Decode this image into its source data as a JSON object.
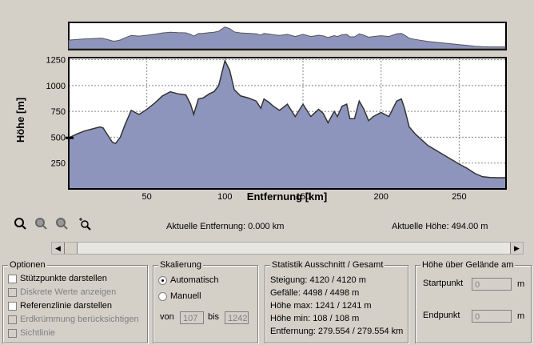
{
  "chart_data": {
    "type": "area",
    "y_label": "Höhe [m]",
    "x_label": "Entfernung [km]",
    "color": "#8e95bd",
    "x": [
      0,
      5,
      10,
      15,
      20,
      22,
      25,
      28,
      30,
      33,
      36,
      40,
      45,
      50,
      55,
      60,
      65,
      70,
      75,
      78,
      80,
      83,
      86,
      90,
      93,
      96,
      100,
      103,
      106,
      110,
      115,
      120,
      123,
      125,
      128,
      131,
      135,
      140,
      145,
      150,
      155,
      160,
      163,
      166,
      170,
      172,
      175,
      178,
      180,
      183,
      186,
      189,
      192,
      195,
      200,
      205,
      210,
      213,
      215,
      218,
      222,
      230,
      240,
      250,
      255,
      260,
      265,
      270,
      275,
      279.5
    ],
    "values": [
      494,
      530,
      560,
      580,
      600,
      590,
      520,
      450,
      440,
      500,
      620,
      760,
      720,
      770,
      830,
      900,
      940,
      920,
      910,
      820,
      720,
      870,
      880,
      920,
      940,
      1000,
      1241,
      1150,
      960,
      900,
      880,
      850,
      780,
      870,
      840,
      800,
      760,
      820,
      700,
      820,
      700,
      770,
      730,
      640,
      750,
      700,
      800,
      820,
      680,
      680,
      850,
      770,
      660,
      700,
      740,
      700,
      850,
      870,
      780,
      600,
      530,
      420,
      330,
      240,
      200,
      150,
      118,
      110,
      108,
      108
    ],
    "xlim": [
      0,
      280
    ],
    "ylim": [
      0,
      1270
    ],
    "xticks": [
      50,
      100,
      150,
      200,
      250
    ],
    "yticks": [
      250,
      500,
      750,
      1000,
      1250
    ],
    "grid": true
  },
  "status": {
    "distance": "Aktuelle Entfernung: 0.000 km",
    "height": "Aktuelle Höhe: 494.00 m"
  },
  "options": {
    "title": "Optionen",
    "items": [
      {
        "label": "Stützpunkte darstellen",
        "checked": false,
        "enabled": true
      },
      {
        "label": "Diskrete Werte anzeigen",
        "checked": false,
        "enabled": false
      },
      {
        "label": "Referenzlinie darstellen",
        "checked": false,
        "enabled": true
      },
      {
        "label": "Erdkrümmung berücksichtigen",
        "checked": false,
        "enabled": false
      },
      {
        "label": "Sichtlinie",
        "checked": false,
        "enabled": false
      }
    ]
  },
  "scaling": {
    "title": "Skalierung",
    "auto": "Automatisch",
    "manual": "Manuell",
    "selected": "auto",
    "from_label": "von",
    "from": 107,
    "to_label": "bis",
    "to": 1242
  },
  "statistics": {
    "title": "Statistik  Ausschnitt / Gesamt",
    "lines": [
      "Steigung: 4120 / 4120 m",
      "Gefälle: 4498 / 4498 m",
      "Höhe max: 1241 / 1241 m",
      "Höhe min: 108 / 108 m",
      "Entfernung: 279.554 / 279.554 km"
    ]
  },
  "ground": {
    "title": "Höhe über Gelände am",
    "start_label": "Startpunkt",
    "start": 0,
    "end_label": "Endpunkt",
    "end": 0,
    "unit": "m"
  }
}
